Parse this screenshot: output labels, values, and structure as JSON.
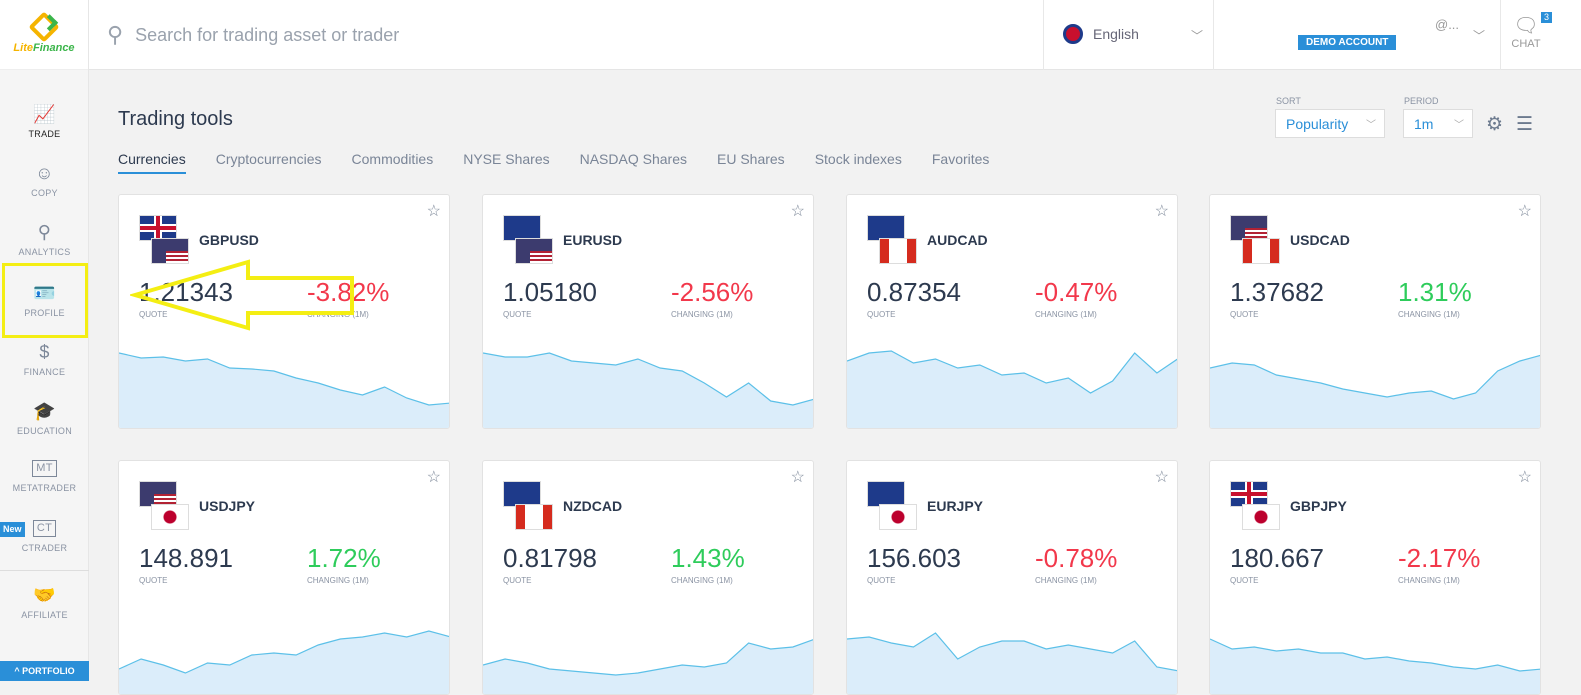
{
  "brand": {
    "name_a": "Lite",
    "name_b": "Finance"
  },
  "sidebar": {
    "items": [
      {
        "label": "TRADE",
        "icon": "chart-icon"
      },
      {
        "label": "COPY",
        "icon": "person-icon"
      },
      {
        "label": "ANALYTICS",
        "icon": "analytics-icon"
      },
      {
        "label": "PROFILE",
        "icon": "id-card-icon"
      },
      {
        "label": "FINANCE",
        "icon": "dollar-icon"
      },
      {
        "label": "EDUCATION",
        "icon": "graduation-cap-icon"
      },
      {
        "label": "METATRADER",
        "icon": "MT"
      },
      {
        "label": "CTRADER",
        "icon": "CT"
      },
      {
        "label": "AFFILIATE",
        "icon": "handshake-icon"
      }
    ],
    "new_badge": "New",
    "portfolio": "PORTFOLIO"
  },
  "header": {
    "search_placeholder": "Search for trading asset or trader",
    "language": "English",
    "account_badge": "DEMO ACCOUNT",
    "user": "@...",
    "chat_label": "CHAT",
    "chat_count": "3"
  },
  "main": {
    "title": "Trading tools",
    "tabs": [
      "Currencies",
      "Cryptocurrencies",
      "Commodities",
      "NYSE Shares",
      "NASDAQ Shares",
      "EU Shares",
      "Stock indexes",
      "Favorites"
    ],
    "sort_label": "SORT",
    "sort_value": "Popularity",
    "period_label": "PERIOD",
    "period_value": "1m",
    "quote_label": "QUOTE",
    "change_label": "CHANGING (1M)",
    "colors": {
      "up": "#2ecc5b",
      "down": "#f2384b",
      "accent": "#2a8fd8"
    },
    "cards": [
      {
        "symbol": "GBPUSD",
        "quote": "1.21343",
        "change": "-3.82%",
        "dir": "down",
        "f1": "gb",
        "f2": "us",
        "spark": [
          70,
          65,
          66,
          62,
          64,
          55,
          54,
          52,
          45,
          40,
          33,
          28,
          36,
          25,
          18,
          20
        ]
      },
      {
        "symbol": "EURUSD",
        "quote": "1.05180",
        "change": "-2.56%",
        "dir": "down",
        "f1": "eu",
        "f2": "us",
        "spark": [
          70,
          66,
          66,
          70,
          62,
          60,
          58,
          64,
          55,
          52,
          40,
          26,
          40,
          22,
          18,
          24
        ]
      },
      {
        "symbol": "AUDCAD",
        "quote": "0.87354",
        "change": "-0.47%",
        "dir": "down",
        "f1": "au",
        "f2": "ca",
        "spark": [
          62,
          70,
          72,
          60,
          64,
          55,
          58,
          48,
          50,
          40,
          45,
          30,
          42,
          70,
          50,
          65
        ]
      },
      {
        "symbol": "USDCAD",
        "quote": "1.37682",
        "change": "1.31%",
        "dir": "up",
        "f1": "us",
        "f2": "ca",
        "spark": [
          55,
          60,
          58,
          48,
          44,
          40,
          34,
          30,
          26,
          30,
          32,
          24,
          30,
          52,
          62,
          68
        ]
      },
      {
        "symbol": "USDJPY",
        "quote": "148.891",
        "change": "1.72%",
        "dir": "up",
        "f1": "us",
        "f2": "jp",
        "spark": [
          20,
          30,
          24,
          16,
          26,
          24,
          34,
          36,
          34,
          44,
          50,
          52,
          56,
          52,
          58,
          52
        ]
      },
      {
        "symbol": "NZDCAD",
        "quote": "0.81798",
        "change": "1.43%",
        "dir": "up",
        "f1": "nz",
        "f2": "ca",
        "spark": [
          24,
          30,
          26,
          20,
          18,
          16,
          14,
          16,
          20,
          24,
          22,
          26,
          46,
          40,
          42,
          50
        ]
      },
      {
        "symbol": "EURJPY",
        "quote": "156.603",
        "change": "-0.78%",
        "dir": "down",
        "f1": "eu",
        "f2": "jp",
        "spark": [
          50,
          52,
          46,
          42,
          56,
          30,
          42,
          48,
          48,
          40,
          44,
          40,
          36,
          48,
          22,
          18
        ]
      },
      {
        "symbol": "GBPJPY",
        "quote": "180.667",
        "change": "-2.17%",
        "dir": "down",
        "f1": "gb",
        "f2": "jp",
        "spark": [
          50,
          40,
          42,
          38,
          40,
          36,
          36,
          30,
          32,
          28,
          26,
          22,
          20,
          24,
          18,
          20
        ]
      }
    ]
  }
}
